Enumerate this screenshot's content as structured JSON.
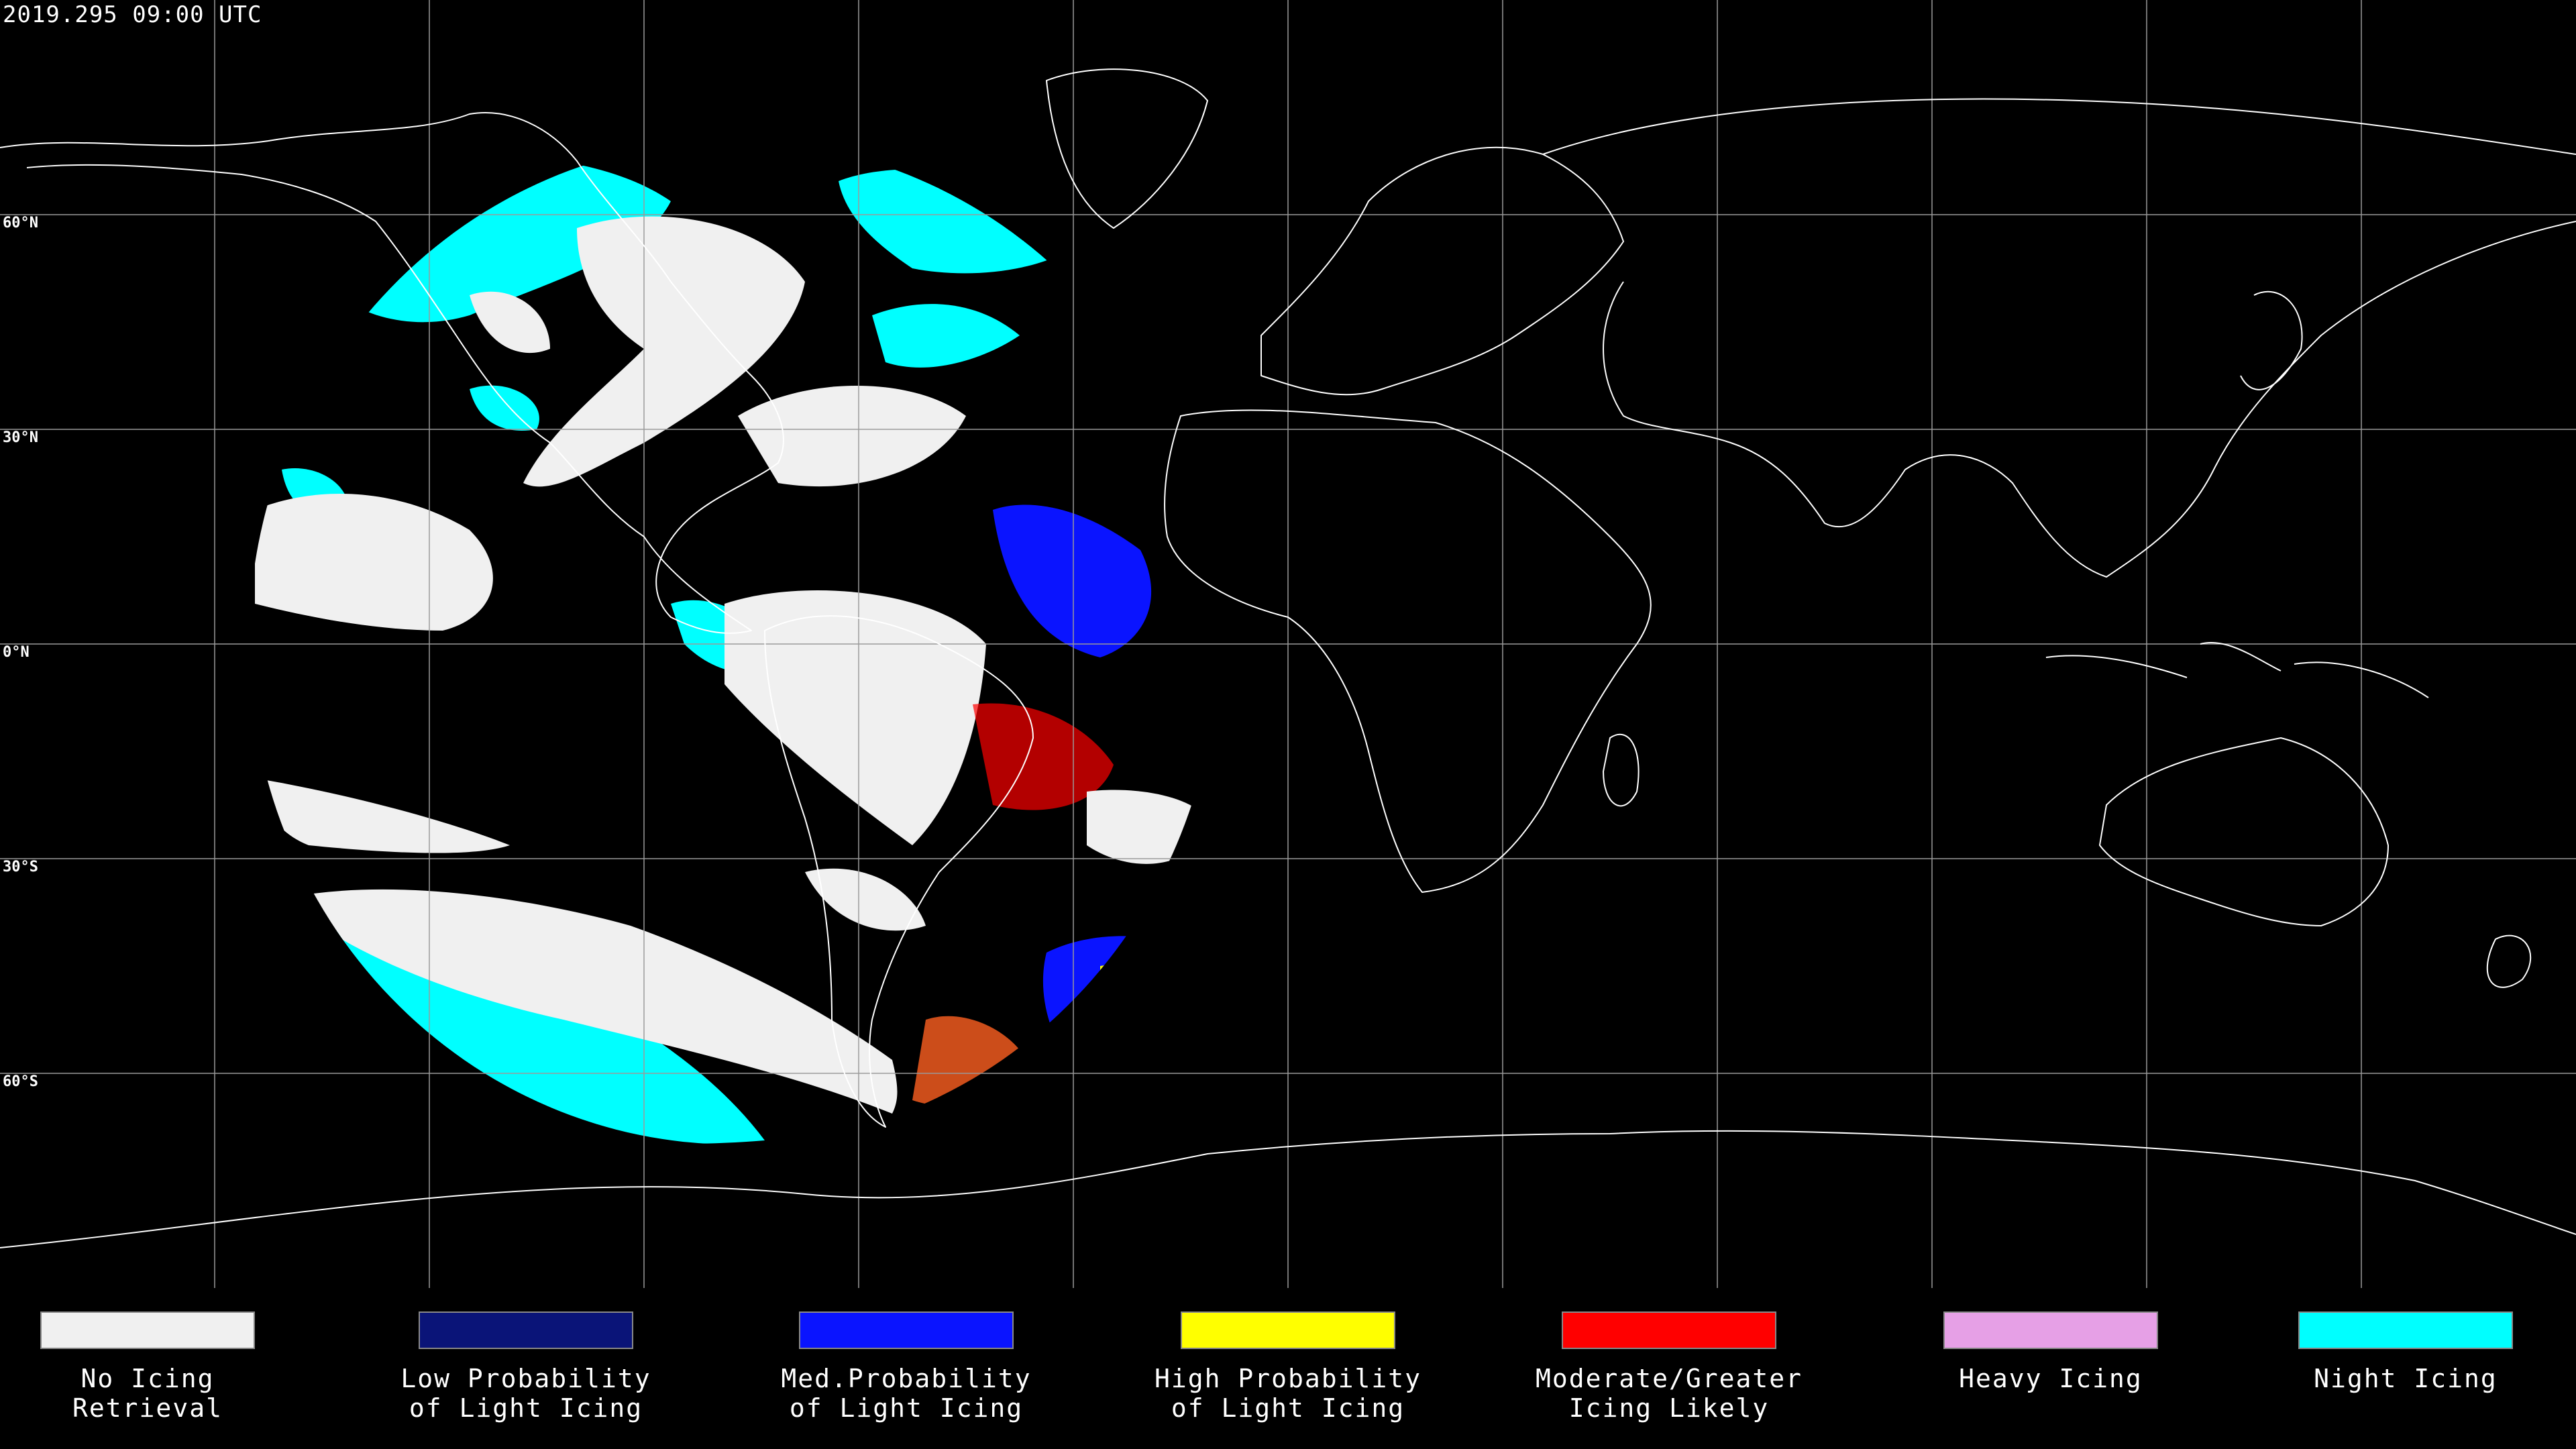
{
  "header": {
    "timestamp": "2019.295 09:00 UTC"
  },
  "latitude_labels": [
    "60°N",
    "30°N",
    "0°N",
    "30°S",
    "60°S"
  ],
  "map": {
    "projection": "equirectangular",
    "lon_range": [
      -180,
      180
    ],
    "lat_range": [
      -90,
      90
    ],
    "graticule_step_deg": 30,
    "background": "#000000",
    "coastline_color": "#ffffff",
    "grid_color": "#aaaaaa",
    "satellite_view_center_lon": -75
  },
  "legend": [
    {
      "label": "No Icing\nRetrieval",
      "color": "#f0f0f0"
    },
    {
      "label": "Low Probability\nof Light Icing",
      "color": "#0a1478"
    },
    {
      "label": "Med.Probability\nof Light Icing",
      "color": "#0a14ff"
    },
    {
      "label": "High Probability\nof Light Icing",
      "color": "#ffff00"
    },
    {
      "label": "Moderate/Greater\nIcing Likely",
      "color": "#ff0000"
    },
    {
      "label": "Heavy Icing",
      "color": "#e6a0e6"
    },
    {
      "label": "Night Icing",
      "color": "#00ffff"
    }
  ]
}
